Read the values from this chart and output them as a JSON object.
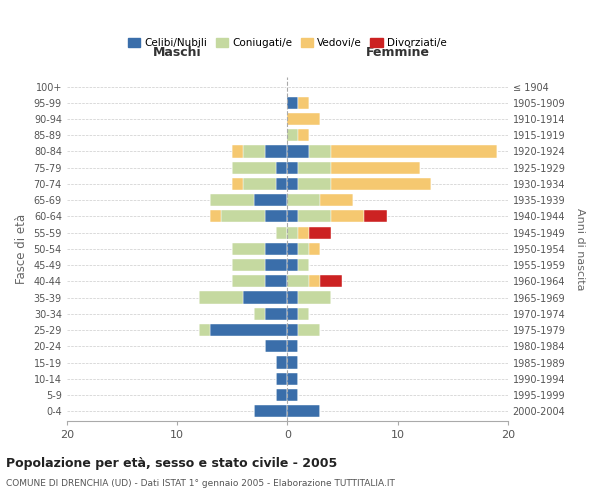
{
  "age_groups": [
    "0-4",
    "5-9",
    "10-14",
    "15-19",
    "20-24",
    "25-29",
    "30-34",
    "35-39",
    "40-44",
    "45-49",
    "50-54",
    "55-59",
    "60-64",
    "65-69",
    "70-74",
    "75-79",
    "80-84",
    "85-89",
    "90-94",
    "95-99",
    "100+"
  ],
  "birth_years": [
    "2000-2004",
    "1995-1999",
    "1990-1994",
    "1985-1989",
    "1980-1984",
    "1975-1979",
    "1970-1974",
    "1965-1969",
    "1960-1964",
    "1955-1959",
    "1950-1954",
    "1945-1949",
    "1940-1944",
    "1935-1939",
    "1930-1934",
    "1925-1929",
    "1920-1924",
    "1915-1919",
    "1910-1914",
    "1905-1909",
    "≤ 1904"
  ],
  "maschi": {
    "celibi": [
      3,
      1,
      1,
      1,
      2,
      7,
      2,
      4,
      2,
      2,
      2,
      0,
      2,
      3,
      1,
      1,
      2,
      0,
      0,
      0,
      0
    ],
    "coniugati": [
      0,
      0,
      0,
      0,
      0,
      1,
      1,
      4,
      3,
      3,
      3,
      1,
      4,
      4,
      3,
      4,
      2,
      0,
      0,
      0,
      0
    ],
    "vedovi": [
      0,
      0,
      0,
      0,
      0,
      0,
      0,
      0,
      0,
      0,
      0,
      0,
      1,
      0,
      1,
      0,
      1,
      0,
      0,
      0,
      0
    ],
    "divorziati": [
      0,
      0,
      0,
      0,
      0,
      0,
      0,
      0,
      0,
      0,
      0,
      0,
      0,
      0,
      0,
      0,
      0,
      0,
      0,
      0,
      0
    ]
  },
  "femmine": {
    "nubili": [
      3,
      1,
      1,
      1,
      1,
      1,
      1,
      1,
      0,
      1,
      1,
      0,
      1,
      0,
      1,
      1,
      2,
      0,
      0,
      1,
      0
    ],
    "coniugate": [
      0,
      0,
      0,
      0,
      0,
      2,
      1,
      3,
      2,
      1,
      1,
      1,
      3,
      3,
      3,
      3,
      2,
      1,
      0,
      0,
      0
    ],
    "vedove": [
      0,
      0,
      0,
      0,
      0,
      0,
      0,
      0,
      1,
      0,
      1,
      1,
      3,
      3,
      9,
      8,
      15,
      1,
      3,
      1,
      0
    ],
    "divorziate": [
      0,
      0,
      0,
      0,
      0,
      0,
      0,
      0,
      2,
      0,
      0,
      2,
      2,
      0,
      0,
      0,
      0,
      0,
      0,
      0,
      0
    ]
  },
  "colors": {
    "celibi_nubili": "#3a6eaa",
    "coniugati_e": "#c5d9a0",
    "vedovi_e": "#f5c870",
    "divorziati_e": "#cc2222"
  },
  "xlim": 20,
  "title": "Popolazione per età, sesso e stato civile - 2005",
  "subtitle": "COMUNE DI DRENCHIA (UD) - Dati ISTAT 1° gennaio 2005 - Elaborazione TUTTITALIA.IT",
  "ylabel_left": "Fasce di età",
  "ylabel_right": "Anni di nascita",
  "xlabel_left": "Maschi",
  "xlabel_right": "Femmine"
}
